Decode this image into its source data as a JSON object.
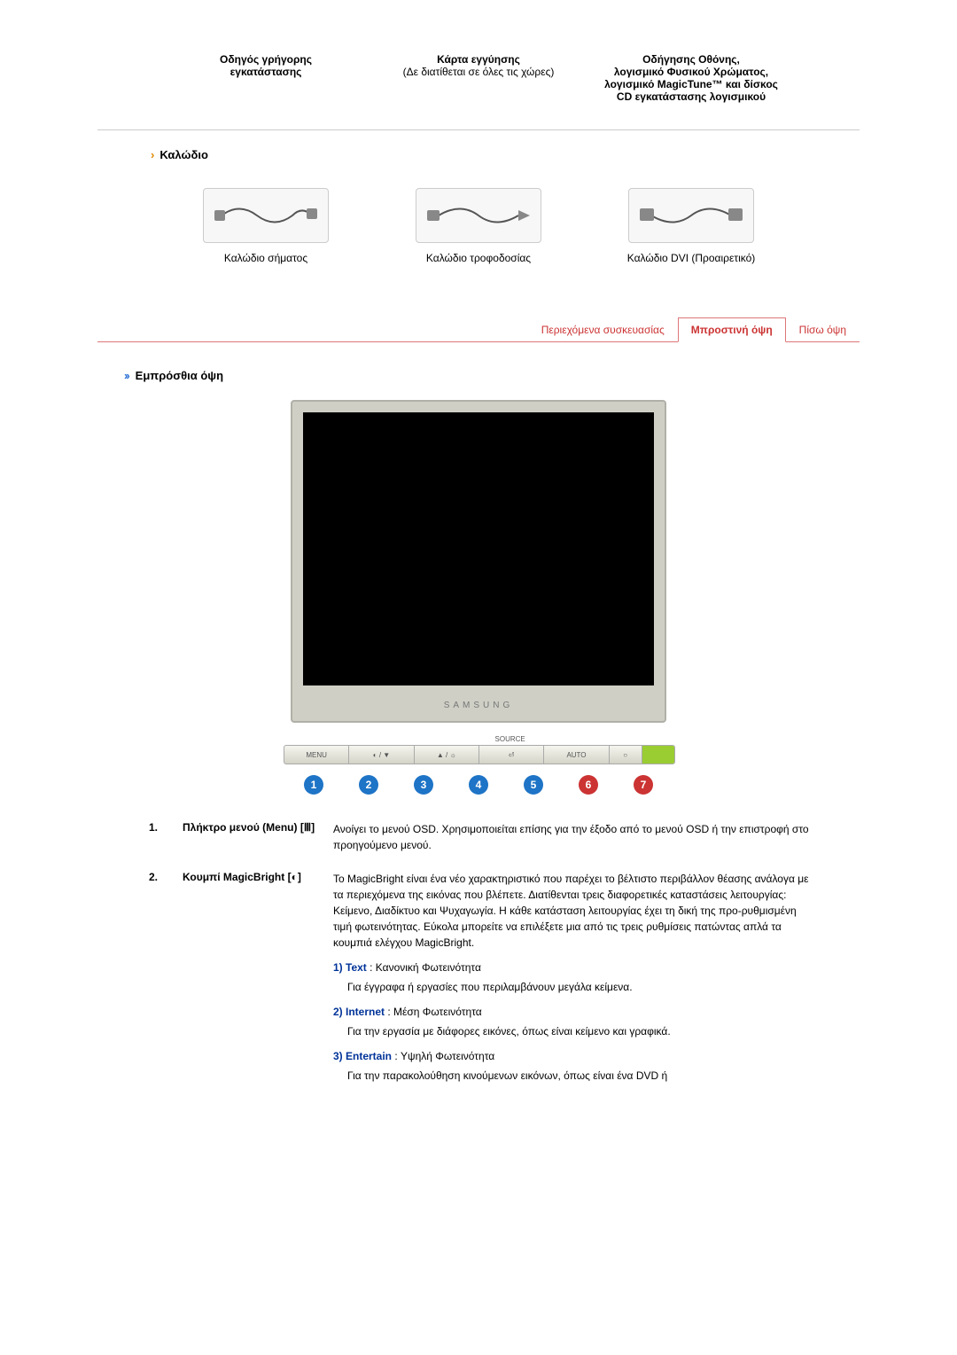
{
  "top_items": [
    {
      "line1": "Οδηγός γρήγορης",
      "line2": "εγκατάστασης",
      "extra": ""
    },
    {
      "line1": "Κάρτα εγγύησης",
      "line2": "",
      "extra": "(Δε διατίθεται σε όλες τις χώρες)"
    },
    {
      "line1": "Οδήγησης Οθόνης,",
      "line2": "λογισμικό Φυσικού Χρώματος, λογισμικό MagicTune™ και δίσκος CD εγκατάστασης λογισμικού",
      "extra": ""
    }
  ],
  "cable_heading": "Καλώδιο",
  "cables": [
    {
      "label_bold": "Καλώδιο σήματος",
      "label_plain": ""
    },
    {
      "label_bold": "Καλώδιο τροφοδοσίας",
      "label_plain": ""
    },
    {
      "label_bold": "Καλώδιο DVI",
      "label_plain": " (Προαιρετικό)"
    }
  ],
  "tabs": {
    "tab1": "Περιεχόμενα συσκευασίας",
    "tab2": "Μπροστινή όψη",
    "tab3": "Πίσω όψη"
  },
  "front_view_heading": "Εμπρόσθια όψη",
  "monitor": {
    "brand": "SAMSUNG",
    "btn_top": {
      "b1": "",
      "b4": "SOURCE"
    },
    "btns": {
      "b1": "MENU",
      "b2": "◐ / ▼",
      "b3": "▲ / ☼",
      "b4": "⏎",
      "b5": "AUTO",
      "b6": "○",
      "b7": ""
    },
    "markers": [
      {
        "n": "1",
        "color": "#1e74c6"
      },
      {
        "n": "2",
        "color": "#1e74c6"
      },
      {
        "n": "3",
        "color": "#1e74c6"
      },
      {
        "n": "4",
        "color": "#1e74c6"
      },
      {
        "n": "5",
        "color": "#1e74c6"
      },
      {
        "n": "6",
        "color": "#cc3333"
      },
      {
        "n": "7",
        "color": "#cc3333"
      }
    ]
  },
  "definitions": [
    {
      "num": "1.",
      "term": "Πλήκτρο μενού (Menu) [Ⅲ]",
      "desc": "Ανοίγει το μενού OSD. Χρησιμοποιείται επίσης για την έξοδο από το μενού OSD ή την επιστροφή στο προηγούμενο μενού."
    },
    {
      "num": "2.",
      "term": "Κουμπί MagicBright [◐]",
      "desc": "Το MagicBright είναι ένα νέο χαρακτηριστικό που παρέχει το βέλτιστο περιβάλλον θέασης ανάλογα με τα περιεχόμενα της εικόνας που βλέπετε. Διατίθενται τρεις διαφορετικές καταστάσεις λειτουργίας: Κείμενο, Διαδίκτυο και Ψυχαγωγία. Η κάθε κατάσταση λειτουργίας έχει τη δική της προ-ρυθμισμένη τιμή φωτεινότητας. Εύκολα μπορείτε να επιλέξετε μια από τις τρεις ρυθμίσεις πατώντας απλά τα κουμπιά ελέγχου MagicBright.",
      "modes": [
        {
          "prefix": "1) Text",
          "title": " : Κανονική Φωτεινότητα",
          "sub": "Για έγγραφα ή εργασίες που περιλαμβάνουν μεγάλα κείμενα."
        },
        {
          "prefix": "2) Internet",
          "title": " : Μέση Φωτεινότητα",
          "sub": "Για την εργασία με διάφορες εικόνες, όπως είναι κείμενο και γραφικά."
        },
        {
          "prefix": "3) Entertain",
          "title": " : Υψηλή Φωτεινότητα",
          "sub": "Για την παρακολούθηση κινούμενων εικόνων, όπως είναι ένα DVD ή"
        }
      ]
    }
  ]
}
